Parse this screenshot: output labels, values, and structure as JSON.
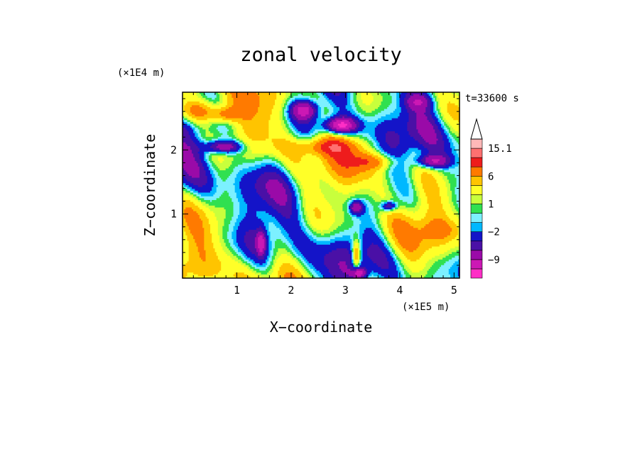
{
  "chart_data": {
    "type": "heatmap",
    "title": "zonal velocity",
    "time_label": "t=33600 s",
    "xlabel": "X−coordinate",
    "ylabel": "Z−coordinate",
    "x_unit_label": "(×1E5 m)",
    "y_unit_label": "(×1E4 m)",
    "xlim": [
      0,
      5.1
    ],
    "ylim": [
      0,
      2.9
    ],
    "x_ticks": [
      1,
      2,
      3,
      4,
      5
    ],
    "y_ticks": [
      1,
      2
    ],
    "x_tick_labels": [
      "1",
      "2",
      "3",
      "4",
      "5"
    ],
    "y_tick_labels": [
      "1",
      "2"
    ],
    "x_minor_step": 0.2,
    "y_minor_step": 0.2,
    "colorbar": {
      "levels": [
        -15,
        -12,
        -9,
        -6,
        -4,
        -2,
        -1,
        0,
        1,
        2,
        4,
        6,
        9,
        12,
        15.1
      ],
      "colors": [
        "#ff2ec6",
        "#cc18b4",
        "#9a0aa8",
        "#4a10a6",
        "#1414c8",
        "#00b8ff",
        "#7cf0ff",
        "#30e050",
        "#c8ff3c",
        "#ffff28",
        "#ffc400",
        "#ff7a00",
        "#ee1c1c",
        "#ff7070",
        "#ffb8b8"
      ],
      "tick_labels": [
        {
          "value": 15.1,
          "label": "15.1"
        },
        {
          "value": 6,
          "label": "6"
        },
        {
          "value": 1,
          "label": "1"
        },
        {
          "value": -2,
          "label": "−2"
        },
        {
          "value": -9,
          "label": "−9"
        }
      ],
      "extend": "max"
    },
    "field": {
      "base_value": 0.5,
      "wave_components": [
        {
          "amplitude": 3.2,
          "kx": 1.3,
          "kz": 2.2,
          "phase": 0.3
        },
        {
          "amplitude": 2.4,
          "kx": 3.1,
          "kz": -1.6,
          "phase": 1.7
        },
        {
          "amplitude": 1.8,
          "kx": 5.2,
          "kz": 4.1,
          "phase": 2.9
        },
        {
          "amplitude": 1.3,
          "kx": 0.6,
          "kz": 6.3,
          "phase": 0.9
        },
        {
          "amplitude": 1.0,
          "kx": 8.3,
          "kz": 2.9,
          "phase": 4.2
        }
      ],
      "features": [
        {
          "x": 0.3,
          "z": 2.6,
          "sx": 0.45,
          "sz": 0.18,
          "value": 8
        },
        {
          "x": 0.8,
          "z": 2.55,
          "sx": 0.25,
          "sz": 0.12,
          "value": 6
        },
        {
          "x": 0.75,
          "z": 2.05,
          "sx": 0.35,
          "sz": 0.1,
          "value": -10
        },
        {
          "x": 2.25,
          "z": 2.62,
          "sx": 0.25,
          "sz": 0.15,
          "value": -10
        },
        {
          "x": 2.9,
          "z": 2.38,
          "sx": 0.3,
          "sz": 0.13,
          "value": -14
        },
        {
          "x": 2.6,
          "z": 2.05,
          "sx": 0.6,
          "sz": 0.14,
          "value": 6
        },
        {
          "x": 3.5,
          "z": 1.82,
          "sx": 0.45,
          "sz": 0.12,
          "value": 5
        },
        {
          "x": 4.6,
          "z": 1.82,
          "sx": 0.3,
          "sz": 0.1,
          "value": -9
        },
        {
          "x": 4.35,
          "z": 2.75,
          "sx": 0.25,
          "sz": 0.12,
          "value": -5
        },
        {
          "x": 3.2,
          "z": 1.1,
          "sx": 0.12,
          "sz": 0.1,
          "value": -9
        },
        {
          "x": 3.8,
          "z": 1.12,
          "sx": 0.15,
          "sz": 0.08,
          "value": -8
        },
        {
          "x": 3.2,
          "z": 0.35,
          "sx": 0.08,
          "sz": 0.25,
          "value": 9
        },
        {
          "x": 3.25,
          "z": 0.08,
          "sx": 0.12,
          "sz": 0.08,
          "value": -10
        },
        {
          "x": 1.45,
          "z": 0.55,
          "sx": 0.08,
          "sz": 0.2,
          "value": -8
        },
        {
          "x": 4.75,
          "z": 0.75,
          "sx": 0.3,
          "sz": 0.15,
          "value": 3
        }
      ],
      "nx": 180,
      "nz": 100
    }
  }
}
